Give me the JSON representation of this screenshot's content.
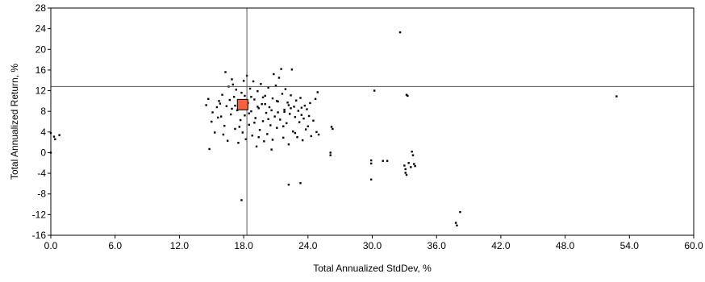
{
  "chart_data": {
    "type": "scatter",
    "title": "",
    "xlabel": "Total Annualized StdDev, %",
    "ylabel": "Total Annualized Return, %",
    "xlim": [
      0,
      60
    ],
    "ylim": [
      -16,
      28
    ],
    "x_ticks": [
      "0.0",
      "6.0",
      "12.0",
      "18.0",
      "24.0",
      "30.0",
      "36.0",
      "42.0",
      "48.0",
      "54.0",
      "60.0"
    ],
    "y_ticks": [
      "-16",
      "-12",
      "-8",
      "-4",
      "0",
      "4",
      "8",
      "12",
      "16",
      "20",
      "24",
      "28"
    ],
    "grid": false,
    "reference_lines": {
      "x": 18.3,
      "y": 12.8
    },
    "highlight_point": {
      "x": 17.9,
      "y": 9.3,
      "color": "#f4613d"
    },
    "point_color": "#000000",
    "series": [
      {
        "values": [
          {
            "x": 32.6,
            "y": 23.3
          },
          {
            "x": 52.8,
            "y": 10.9
          },
          {
            "x": 30.2,
            "y": 12.0
          },
          {
            "x": 33.2,
            "y": 11.2
          },
          {
            "x": 33.3,
            "y": 11.0
          },
          {
            "x": 17.8,
            "y": -9.2
          },
          {
            "x": 22.2,
            "y": -6.2
          },
          {
            "x": 23.3,
            "y": -5.9
          },
          {
            "x": 37.8,
            "y": -13.6
          },
          {
            "x": 37.9,
            "y": -14.1
          },
          {
            "x": 38.2,
            "y": -11.5
          },
          {
            "x": 29.9,
            "y": -5.2
          },
          {
            "x": 29.9,
            "y": -1.5
          },
          {
            "x": 29.9,
            "y": -2.1
          },
          {
            "x": 31.0,
            "y": -1.6
          },
          {
            "x": 31.4,
            "y": -1.6
          },
          {
            "x": 33.0,
            "y": -2.5
          },
          {
            "x": 33.1,
            "y": -3.2
          },
          {
            "x": 33.1,
            "y": -3.9
          },
          {
            "x": 33.2,
            "y": -4.3
          },
          {
            "x": 33.4,
            "y": -2.0
          },
          {
            "x": 33.6,
            "y": -2.8
          },
          {
            "x": 33.7,
            "y": 0.2
          },
          {
            "x": 33.8,
            "y": -0.5
          },
          {
            "x": 33.9,
            "y": -2.2
          },
          {
            "x": 34.0,
            "y": -2.6
          },
          {
            "x": 26.1,
            "y": 0.0
          },
          {
            "x": 26.1,
            "y": -0.5
          },
          {
            "x": 26.2,
            "y": 5.0
          },
          {
            "x": 26.3,
            "y": 4.6
          },
          {
            "x": 0.0,
            "y": 0.0
          },
          {
            "x": 0.0,
            "y": 3.8
          },
          {
            "x": 0.3,
            "y": 3.1
          },
          {
            "x": 0.4,
            "y": 2.6
          },
          {
            "x": 0.8,
            "y": 3.4
          },
          {
            "x": 14.5,
            "y": 9.2
          },
          {
            "x": 14.7,
            "y": 10.4
          },
          {
            "x": 14.8,
            "y": 0.7
          },
          {
            "x": 15.0,
            "y": 6.0
          },
          {
            "x": 15.1,
            "y": 7.8
          },
          {
            "x": 15.3,
            "y": 3.9
          },
          {
            "x": 15.5,
            "y": 8.8
          },
          {
            "x": 15.7,
            "y": 10.0
          },
          {
            "x": 15.9,
            "y": 7.0
          },
          {
            "x": 16.0,
            "y": 11.2
          },
          {
            "x": 16.2,
            "y": 5.2
          },
          {
            "x": 16.3,
            "y": 15.6
          },
          {
            "x": 16.4,
            "y": 9.0
          },
          {
            "x": 16.5,
            "y": 2.3
          },
          {
            "x": 16.6,
            "y": 12.8
          },
          {
            "x": 16.8,
            "y": 7.4
          },
          {
            "x": 16.9,
            "y": 14.2
          },
          {
            "x": 17.0,
            "y": 13.2
          },
          {
            "x": 17.1,
            "y": 10.8
          },
          {
            "x": 17.2,
            "y": 4.6
          },
          {
            "x": 17.3,
            "y": 12.2
          },
          {
            "x": 17.4,
            "y": 8.2
          },
          {
            "x": 17.5,
            "y": 1.9
          },
          {
            "x": 17.7,
            "y": 6.3
          },
          {
            "x": 17.8,
            "y": 11.6
          },
          {
            "x": 18.0,
            "y": 13.9
          },
          {
            "x": 18.1,
            "y": 7.2
          },
          {
            "x": 18.2,
            "y": 2.6
          },
          {
            "x": 18.3,
            "y": 14.9
          },
          {
            "x": 18.4,
            "y": 9.6
          },
          {
            "x": 18.5,
            "y": 5.4
          },
          {
            "x": 18.6,
            "y": 12.4
          },
          {
            "x": 18.7,
            "y": 8.0
          },
          {
            "x": 18.8,
            "y": 3.3
          },
          {
            "x": 18.9,
            "y": 13.8
          },
          {
            "x": 19.0,
            "y": 10.3
          },
          {
            "x": 19.1,
            "y": 6.7
          },
          {
            "x": 19.2,
            "y": 1.2
          },
          {
            "x": 19.3,
            "y": 11.9
          },
          {
            "x": 19.4,
            "y": 8.6
          },
          {
            "x": 19.5,
            "y": 4.4
          },
          {
            "x": 19.6,
            "y": 13.3
          },
          {
            "x": 19.7,
            "y": 9.4
          },
          {
            "x": 19.8,
            "y": 6.1
          },
          {
            "x": 19.9,
            "y": 2.2
          },
          {
            "x": 20.0,
            "y": 11.0
          },
          {
            "x": 20.1,
            "y": 7.7
          },
          {
            "x": 20.2,
            "y": 3.6
          },
          {
            "x": 20.3,
            "y": 12.6
          },
          {
            "x": 20.4,
            "y": 8.8
          },
          {
            "x": 20.5,
            "y": 5.3
          },
          {
            "x": 20.6,
            "y": 0.6
          },
          {
            "x": 20.7,
            "y": 10.5
          },
          {
            "x": 20.8,
            "y": 15.2
          },
          {
            "x": 20.9,
            "y": 7.0
          },
          {
            "x": 21.0,
            "y": 13.0
          },
          {
            "x": 21.1,
            "y": 4.8
          },
          {
            "x": 21.2,
            "y": 9.9
          },
          {
            "x": 21.3,
            "y": 14.5
          },
          {
            "x": 21.4,
            "y": 6.4
          },
          {
            "x": 21.5,
            "y": 16.2
          },
          {
            "x": 21.6,
            "y": 11.4
          },
          {
            "x": 21.7,
            "y": 2.9
          },
          {
            "x": 21.8,
            "y": 8.3
          },
          {
            "x": 21.9,
            "y": 12.3
          },
          {
            "x": 22.0,
            "y": 5.7
          },
          {
            "x": 22.1,
            "y": 9.7
          },
          {
            "x": 22.2,
            "y": 1.6
          },
          {
            "x": 22.3,
            "y": 7.5
          },
          {
            "x": 22.4,
            "y": 11.1
          },
          {
            "x": 22.5,
            "y": 16.1
          },
          {
            "x": 22.6,
            "y": 4.1
          },
          {
            "x": 22.7,
            "y": 8.9
          },
          {
            "x": 22.8,
            "y": 6.9
          },
          {
            "x": 22.9,
            "y": 10.1
          },
          {
            "x": 23.0,
            "y": 3.0
          },
          {
            "x": 23.1,
            "y": 8.1
          },
          {
            "x": 23.2,
            "y": 5.9
          },
          {
            "x": 23.3,
            "y": 10.6
          },
          {
            "x": 23.4,
            "y": 7.3
          },
          {
            "x": 23.5,
            "y": 2.4
          },
          {
            "x": 23.6,
            "y": 6.6
          },
          {
            "x": 23.7,
            "y": 9.1
          },
          {
            "x": 23.8,
            "y": 4.5
          },
          {
            "x": 23.9,
            "y": 8.4
          },
          {
            "x": 24.0,
            "y": 5.1
          },
          {
            "x": 24.1,
            "y": 7.1
          },
          {
            "x": 24.3,
            "y": 3.2
          },
          {
            "x": 24.5,
            "y": 6.2
          },
          {
            "x": 24.7,
            "y": 10.4
          },
          {
            "x": 24.8,
            "y": 4.0
          },
          {
            "x": 24.9,
            "y": 11.7
          },
          {
            "x": 25.0,
            "y": 3.5
          },
          {
            "x": 15.6,
            "y": 6.8
          },
          {
            "x": 15.8,
            "y": 9.5
          },
          {
            "x": 16.1,
            "y": 3.5
          },
          {
            "x": 16.7,
            "y": 10.2
          },
          {
            "x": 17.6,
            "y": 5.0
          },
          {
            "x": 17.9,
            "y": 3.9
          },
          {
            "x": 18.1,
            "y": 11.0
          },
          {
            "x": 18.5,
            "y": 7.6
          },
          {
            "x": 19.0,
            "y": 5.8
          },
          {
            "x": 19.4,
            "y": 3.0
          },
          {
            "x": 19.8,
            "y": 10.7
          },
          {
            "x": 20.3,
            "y": 6.5
          },
          {
            "x": 20.7,
            "y": 2.5
          },
          {
            "x": 21.2,
            "y": 7.8
          },
          {
            "x": 21.7,
            "y": 5.1
          },
          {
            "x": 22.2,
            "y": 9.2
          },
          {
            "x": 22.8,
            "y": 3.8
          },
          {
            "x": 23.4,
            "y": 8.7
          },
          {
            "x": 24.2,
            "y": 9.6
          },
          {
            "x": 16.9,
            "y": 8.5
          },
          {
            "x": 17.2,
            "y": 9.1
          },
          {
            "x": 18.7,
            "y": 10.8
          },
          {
            "x": 19.3,
            "y": 8.9
          },
          {
            "x": 20.0,
            "y": 9.4
          },
          {
            "x": 20.6,
            "y": 8.2
          },
          {
            "x": 21.1,
            "y": 10.0
          },
          {
            "x": 21.8,
            "y": 7.9
          },
          {
            "x": 22.4,
            "y": 8.6
          }
        ]
      }
    ]
  }
}
